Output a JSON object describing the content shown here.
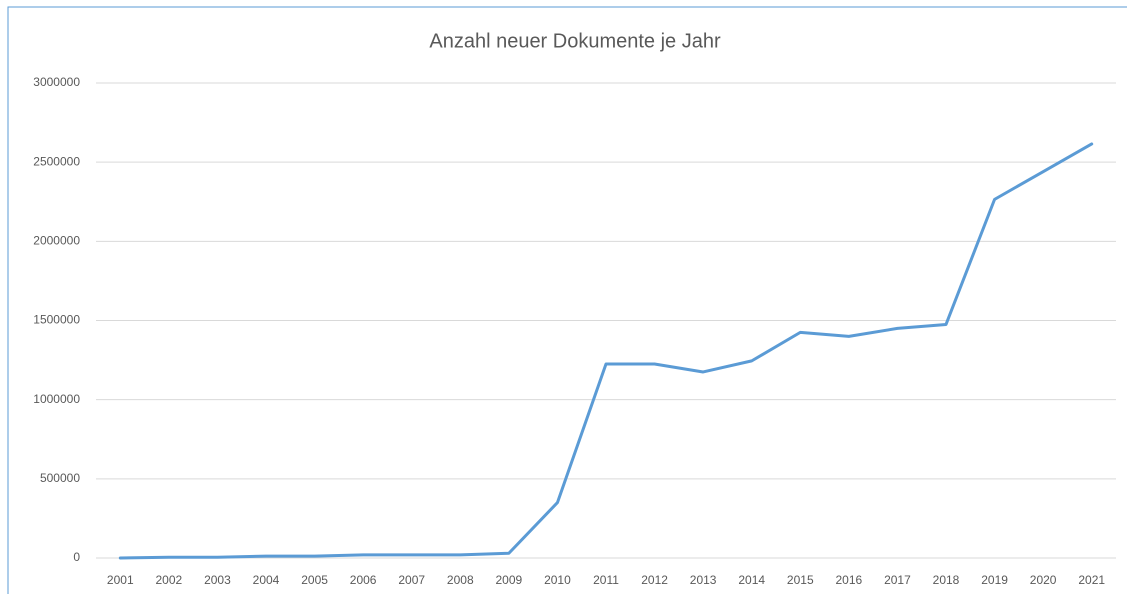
{
  "chart_data": {
    "type": "line",
    "title": "Anzahl neuer Dokumente je Jahr",
    "categories": [
      "2001",
      "2002",
      "2003",
      "2004",
      "2005",
      "2006",
      "2007",
      "2008",
      "2009",
      "2010",
      "2011",
      "2012",
      "2013",
      "2014",
      "2015",
      "2016",
      "2017",
      "2018",
      "2019",
      "2020",
      "2021"
    ],
    "values": [
      0,
      5000,
      5000,
      12000,
      12000,
      20000,
      20000,
      20000,
      30000,
      350000,
      1225000,
      1225000,
      1175000,
      1245000,
      1425000,
      1400000,
      1450000,
      1475000,
      2265000,
      2440000,
      2615000
    ],
    "color": "#5b9bd5",
    "ylim": [
      0,
      3000000
    ],
    "yticks": [
      0,
      500000,
      1000000,
      1500000,
      2000000,
      2500000,
      3000000
    ],
    "grid": true
  }
}
